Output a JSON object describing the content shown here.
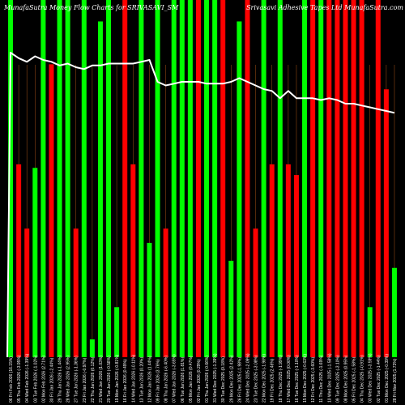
{
  "chart_data": {
    "type": "bar",
    "title": "MunafaSutra Money Flow Charts for SRIVASAVI_SM",
    "title_right": "Srivasavi Adhesive Tapes Ltd MunafaSutra.com",
    "categories": [
      "06 Fri Feb 2026 (16.15%)",
      "05 Thu Feb 2026 (-3.95%)",
      "04 Wed Feb 2026 (-1.39%)",
      "03 Tue Feb 2026 (-1.02%)",
      "02 Mon Feb 2026 (2.71%)",
      "30 Fri Jan 2026 (-2.44%)",
      "29 Thu Jan 2026 (-1.44%)",
      "28 Wed Jan 2026 (2.95%)",
      "27 Tue Jan 2026 (-1.36%)",
      "23 Fri Jan 2026 (-0.97%)",
      "22 Thu Jan 2026 (0.12%)",
      "21 Wed Jan 2026 (1.03%)",
      "20 Tue Jan 2026 (-0.58%)",
      "19 Mon Jan 2026 (-0.81%)",
      "16 Fri Jan 2026 (0.49%)",
      "14 Wed Jan 2026 (-0.11%)",
      "13 Tue Jan 2026 (0.20%)",
      "12 Mon Jan 2026 (1.44%)",
      "09 Fri Jan 2026 (3.76%)",
      "08 Thu Jan 2026 (-6.40%)",
      "07 Wed Jan 2026 (-3.65%)",
      "06 Tue Jan 2026 (1.81%)",
      "05 Mon Jan 2026 (0.47%)",
      "02 Fri Jan 2026 (0.29%)",
      "01 Thu Jan 2026 (-0.66%)",
      "31 Wed Dec 2025 (-1.39%)",
      "30 Tue Dec 2025 (0.18%)",
      "29 Mon Dec 2025 (2.42%)",
      "26 Fri Dec 2025 (-1.98%)",
      "24 Wed Dec 2025 (-2.09%)",
      "23 Tue Dec 2025 (-3.08%)",
      "22 Mon Dec 2025 (-1.98%)",
      "19 Fri Dec 2025 (2.46%)",
      "18 Thu Dec 2025 (-1.99%)",
      "17 Wed Dec 2025 (0.00%)",
      "16 Tue Dec 2025 (-1.10%)",
      "15 Mon Dec 2025 (-0.63%)",
      "12 Fri Dec 2025 (-3.60%)",
      "11 Thu Dec 2025 (-1.69%)",
      "10 Wed Dec 2025 (-1.58%)",
      "09 Tue Dec 2025 (-3.10%)",
      "08 Mon Dec 2025 (0.95%)",
      "05 Fri Dec 2025 (-1.58%)",
      "04 Thu Dec 2025 (-0.91%)",
      "03 Wed Dec 2025 (-3.59%)",
      "02 Tue Dec 2025 (-1.44%)",
      "01 Mon Dec 2025 (-0.39%)",
      "28 Fri Nov 2025 (1.73%)"
    ],
    "series": [
      {
        "values": [
          100,
          54,
          36,
          53,
          100,
          82,
          100,
          100,
          36,
          100,
          5,
          94,
          100,
          14,
          100,
          54,
          100,
          32,
          100,
          36,
          100,
          100,
          100,
          100,
          100,
          100,
          100,
          27,
          94,
          100,
          36,
          100,
          54,
          100,
          54,
          51,
          100,
          100,
          100,
          100,
          100,
          100,
          100,
          100,
          14,
          100,
          75,
          25
        ],
        "colors": [
          "#00ff00",
          "#ff0000",
          "#ff0000",
          "#00ff00",
          "#00ff00",
          "#ff0000",
          "#00ff00",
          "#00ff00",
          "#ff0000",
          "#00ff00",
          "#00ff00",
          "#00ff00",
          "#00ff00",
          "#00ff00",
          "#ff0000",
          "#ff0000",
          "#00ff00",
          "#00ff00",
          "#00ff00",
          "#ff0000",
          "#00ff00",
          "#00ff00",
          "#00ff00",
          "#ff0000",
          "#00ff00",
          "#00ff00",
          "#ff0000",
          "#00ff00",
          "#00ff00",
          "#ff0000",
          "#ff0000",
          "#00ff00",
          "#ff0000",
          "#00ff00",
          "#ff0000",
          "#ff0000",
          "#00ff00",
          "#ff0000",
          "#00ff00",
          "#ff0000",
          "#ff0000",
          "#ff0000",
          "#ff0000",
          "#ff0000",
          "#00ff00",
          "#ff0000",
          "#ff0000",
          "#00ff00"
        ]
      },
      {
        "line_color": "#ffffff",
        "values": [
          100,
          97,
          95,
          98,
          96,
          95,
          93,
          94,
          92,
          91,
          93,
          93,
          94,
          94,
          94,
          94,
          95,
          96,
          84,
          82,
          83,
          84,
          84,
          84,
          83,
          83,
          83,
          84,
          86,
          84,
          82,
          80,
          79,
          75,
          79,
          75,
          75,
          75,
          74,
          75,
          74,
          72,
          72,
          71,
          70,
          69,
          68,
          67
        ]
      }
    ],
    "ylim": [
      0,
      100
    ],
    "gridlines": "vertical",
    "grid_color": "#8b4513",
    "background": "#000000"
  }
}
